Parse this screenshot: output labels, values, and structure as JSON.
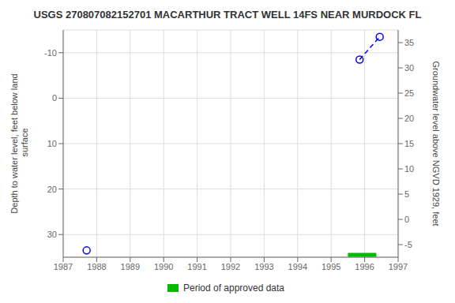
{
  "chart_data": {
    "type": "scatter",
    "title": "USGS 270807082152701 MACARTHUR TRACT WELL 14FS NEAR MURDOCK FL",
    "y_label": "Depth to water level, feet below land\n surface",
    "y2_label": "Groundwater level above NGVD 1929, feet",
    "x": [
      1987.7,
      1995.85,
      1996.45
    ],
    "series": [
      {
        "type": "scatter",
        "color": "blue",
        "marker": "circle",
        "values": [
          33.5,
          -8.5,
          -13.5
        ]
      },
      {
        "type": "line",
        "color": "blue",
        "line_style": "dashed",
        "values": [
          null,
          -8.5,
          -13.5
        ]
      },
      {
        "name": "Period of approved data",
        "type": "line",
        "color": "#00bb00",
        "line_style": "solid",
        "x": [
          1995.5,
          1996.35
        ],
        "values": [
          34.5,
          34.5
        ]
      }
    ],
    "xlim": [
      1987,
      1997
    ],
    "xticks": [
      1987,
      1988,
      1989,
      1990,
      1991,
      1992,
      1993,
      1994,
      1995,
      1996,
      1997
    ],
    "ylim": [
      35,
      -15
    ],
    "yticks": [
      -10,
      0,
      10,
      20,
      30
    ],
    "y2lim": [
      -7.5,
      37.5
    ],
    "y2ticks": [
      -5,
      0,
      5,
      10,
      15,
      20,
      25,
      30,
      35
    ],
    "grid": true,
    "legend": "bottom"
  }
}
